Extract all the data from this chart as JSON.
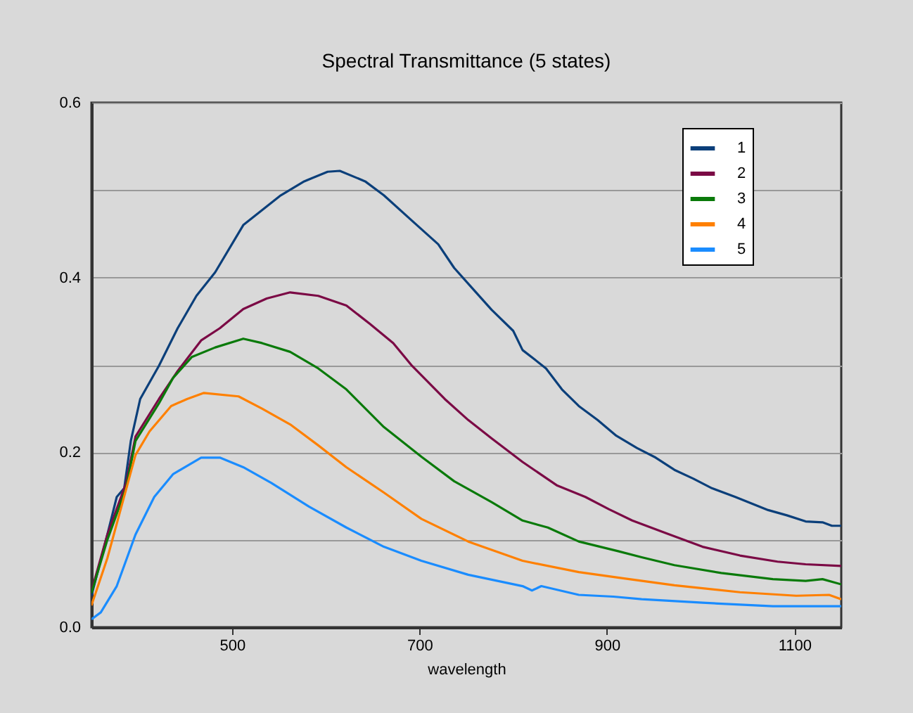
{
  "chart_data": {
    "type": "line",
    "title": "Spectral Transmittance (5 states)",
    "xlabel": "wavelength",
    "xlim": [
      350,
      1150
    ],
    "xticks": [
      500,
      700,
      900,
      1100
    ],
    "ylim": [
      0,
      0.6
    ],
    "yticks": [
      {
        "value": 0,
        "label": "0.0"
      },
      {
        "value": 0.1,
        "label": null
      },
      0.2,
      {
        "value": 0.3,
        "label": null
      },
      0.4,
      {
        "value": 0.5,
        "label": null
      },
      0.6
    ],
    "grid": "y",
    "legend": "top right",
    "marker": "none",
    "line_style": "solid",
    "series": [
      {
        "name": "1",
        "color": "#0b3f7a",
        "x": [
          350,
          367,
          377,
          385,
          392,
          402,
          422,
          442,
          462,
          482,
          512,
          552,
          577,
          602,
          615,
          642,
          662,
          692,
          720,
          737,
          757,
          777,
          800,
          810,
          822,
          835,
          852,
          870,
          890,
          910,
          932,
          952,
          972,
          992,
          1012,
          1037,
          1072,
          1092,
          1112,
          1130,
          1140,
          1150
        ],
        "values": [
          0.036,
          0.106,
          0.149,
          0.159,
          0.213,
          0.261,
          0.299,
          0.342,
          0.379,
          0.406,
          0.46,
          0.494,
          0.51,
          0.521,
          0.522,
          0.51,
          0.494,
          0.465,
          0.438,
          0.411,
          0.387,
          0.363,
          0.339,
          0.317,
          0.307,
          0.296,
          0.272,
          0.253,
          0.237,
          0.219,
          0.205,
          0.194,
          0.18,
          0.17,
          0.159,
          0.149,
          0.134,
          0.128,
          0.121,
          0.12,
          0.116,
          0.116
        ]
      },
      {
        "name": "2",
        "color": "#7b0a45",
        "x": [
          350,
          367,
          387,
          397,
          422,
          442,
          467,
          487,
          512,
          537,
          562,
          592,
          622,
          647,
          672,
          692,
          727,
          752,
          777,
          810,
          847,
          877,
          902,
          927,
          962,
          1002,
          1042,
          1082,
          1112,
          1150
        ],
        "values": [
          0.041,
          0.106,
          0.165,
          0.218,
          0.261,
          0.293,
          0.328,
          0.342,
          0.364,
          0.376,
          0.383,
          0.379,
          0.368,
          0.347,
          0.325,
          0.299,
          0.261,
          0.237,
          0.216,
          0.189,
          0.162,
          0.149,
          0.135,
          0.122,
          0.108,
          0.092,
          0.082,
          0.075,
          0.072,
          0.07
        ]
      },
      {
        "name": "3",
        "color": "#0a7a0a",
        "x": [
          350,
          367,
          387,
          397,
          422,
          437,
          457,
          482,
          512,
          532,
          562,
          592,
          622,
          662,
          702,
          737,
          777,
          810,
          837,
          870,
          912,
          937,
          972,
          1022,
          1077,
          1112,
          1130,
          1150
        ],
        "values": [
          0.039,
          0.1,
          0.159,
          0.213,
          0.256,
          0.285,
          0.309,
          0.32,
          0.33,
          0.325,
          0.315,
          0.296,
          0.272,
          0.229,
          0.195,
          0.167,
          0.143,
          0.122,
          0.114,
          0.098,
          0.087,
          0.08,
          0.071,
          0.062,
          0.055,
          0.053,
          0.055,
          0.049
        ]
      },
      {
        "name": "4",
        "color": "#ff8000",
        "x": [
          350,
          367,
          382,
          397,
          412,
          435,
          452,
          470,
          507,
          532,
          562,
          592,
          622,
          662,
          702,
          752,
          810,
          870,
          917,
          972,
          1042,
          1102,
          1137,
          1150
        ],
        "values": [
          0.025,
          0.079,
          0.138,
          0.197,
          0.224,
          0.253,
          0.261,
          0.268,
          0.264,
          0.25,
          0.232,
          0.208,
          0.183,
          0.154,
          0.124,
          0.098,
          0.076,
          0.063,
          0.056,
          0.048,
          0.04,
          0.036,
          0.037,
          0.032
        ]
      },
      {
        "name": "5",
        "color": "#1a8cff",
        "x": [
          350,
          360,
          377,
          397,
          417,
          437,
          467,
          487,
          512,
          542,
          582,
          622,
          662,
          702,
          752,
          810,
          820,
          830,
          870,
          907,
          937,
          1002,
          1077,
          1112,
          1150
        ],
        "values": [
          0.009,
          0.017,
          0.047,
          0.106,
          0.149,
          0.175,
          0.194,
          0.194,
          0.183,
          0.165,
          0.138,
          0.114,
          0.092,
          0.076,
          0.06,
          0.047,
          0.042,
          0.047,
          0.037,
          0.035,
          0.032,
          0.028,
          0.024,
          0.024,
          0.024
        ]
      }
    ]
  }
}
